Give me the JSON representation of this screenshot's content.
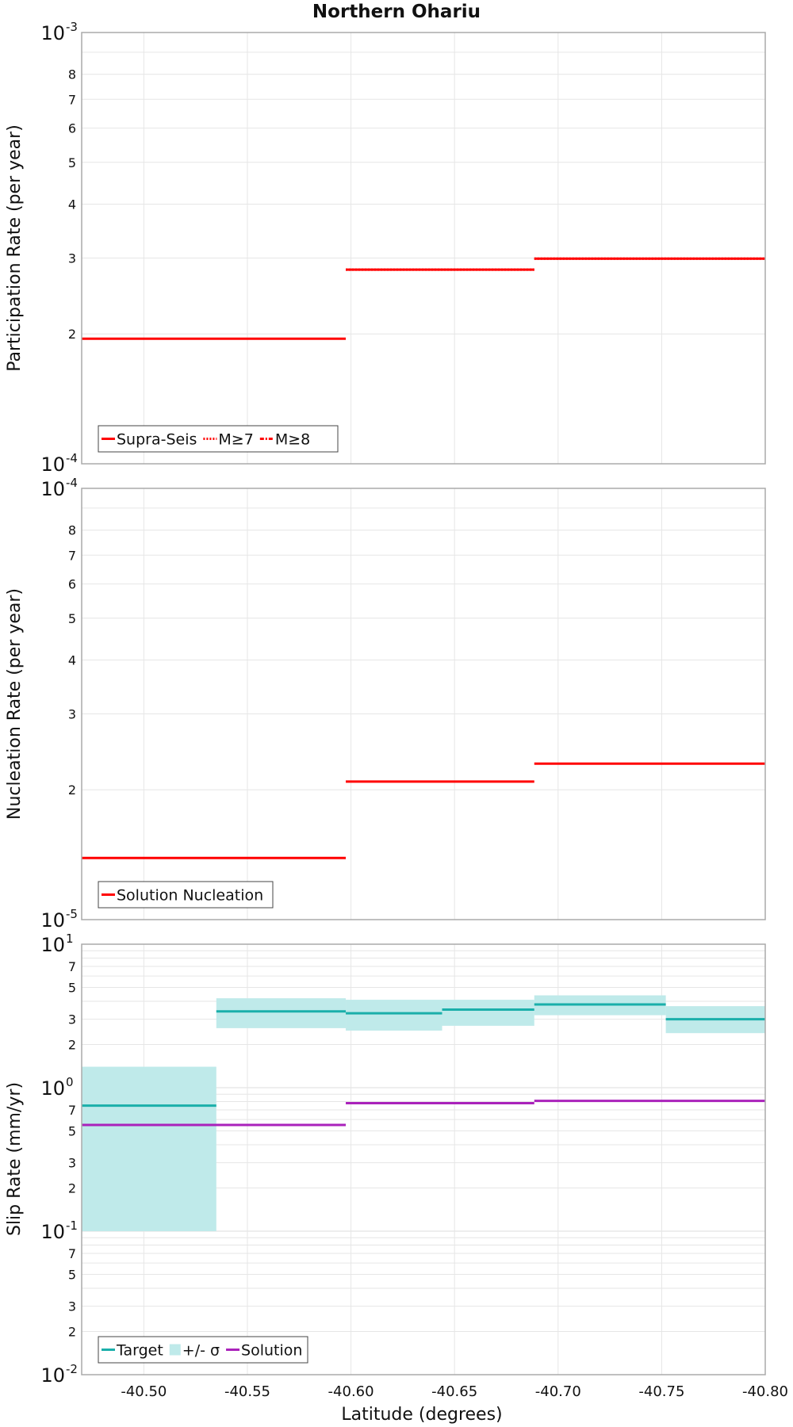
{
  "figure": {
    "title": "Northern Ohariu",
    "xlabel": "Latitude (degrees)"
  },
  "colors": {
    "red": "#ff0000",
    "teal": "#1aafaa",
    "band": "#bfeaea",
    "magenta": "#aa22bb",
    "grid": "#e6e6e6",
    "frame": "#aaaaaa"
  },
  "chart_data": [
    {
      "type": "line",
      "title": "Northern Ohariu",
      "xlabel": "",
      "ylabel": "Participation Rate (per year)",
      "yscale": "log",
      "xlim": [
        -40.47,
        -40.8
      ],
      "ylim": [
        0.0001,
        0.001
      ],
      "x_ticks": [
        "-40.50",
        "-40.55",
        "-40.60",
        "-40.65",
        "-40.70",
        "-40.75",
        "-40.80"
      ],
      "y_major_ticks": [
        {
          "base": "10",
          "exp": "-4"
        },
        {
          "base": "10",
          "exp": "-3"
        }
      ],
      "y_minor_ticks": [
        "2",
        "3",
        "4",
        "5",
        "6",
        "7",
        "8"
      ],
      "series": [
        {
          "name": "Supra-Seis",
          "style": "solid",
          "segments": [
            {
              "x": [
                -40.47,
                -40.5975
              ],
              "y": 0.000195
            },
            {
              "x": [
                -40.5975,
                -40.6885
              ],
              "y": 0.000282
            },
            {
              "x": [
                -40.6885,
                -40.8
              ],
              "y": 0.000299
            }
          ]
        },
        {
          "name": "M≥7",
          "style": "dotted",
          "segments": [
            {
              "x": [
                -40.5975,
                -40.6885
              ],
              "y": 0.000282
            },
            {
              "x": [
                -40.6885,
                -40.8
              ],
              "y": 0.000299
            }
          ]
        },
        {
          "name": "M≥8",
          "style": "dashdot",
          "segments": []
        }
      ],
      "legend": [
        "Supra-Seis",
        "M≥7",
        "M≥8"
      ],
      "legend_position": "bottom-left"
    },
    {
      "type": "line",
      "xlabel": "",
      "ylabel": "Nucleation Rate (per year)",
      "yscale": "log",
      "xlim": [
        -40.47,
        -40.8
      ],
      "ylim": [
        1e-05,
        0.0001
      ],
      "x_ticks": [
        "-40.50",
        "-40.55",
        "-40.60",
        "-40.65",
        "-40.70",
        "-40.75",
        "-40.80"
      ],
      "y_major_ticks": [
        {
          "base": "10",
          "exp": "-5"
        },
        {
          "base": "10",
          "exp": "-4"
        }
      ],
      "y_minor_ticks": [
        "2",
        "3",
        "4",
        "5",
        "6",
        "7",
        "8"
      ],
      "series": [
        {
          "name": "Solution Nucleation",
          "style": "solid",
          "segments": [
            {
              "x": [
                -40.47,
                -40.5975
              ],
              "y": 1.39e-05
            },
            {
              "x": [
                -40.5975,
                -40.6885
              ],
              "y": 2.09e-05
            },
            {
              "x": [
                -40.6885,
                -40.8
              ],
              "y": 2.3e-05
            }
          ]
        }
      ],
      "legend": [
        "Solution Nucleation"
      ],
      "legend_position": "bottom-left"
    },
    {
      "type": "line",
      "xlabel": "Latitude (degrees)",
      "ylabel": "Slip Rate (mm/yr)",
      "yscale": "log",
      "xlim": [
        -40.47,
        -40.8
      ],
      "ylim": [
        0.01,
        10
      ],
      "x_ticks": [
        "-40.50",
        "-40.55",
        "-40.60",
        "-40.65",
        "-40.70",
        "-40.75",
        "-40.80"
      ],
      "y_major_ticks": [
        {
          "base": "10",
          "exp": "-2"
        },
        {
          "base": "10",
          "exp": "-1"
        },
        {
          "base": "10",
          "exp": "0"
        },
        {
          "base": "10",
          "exp": "1"
        }
      ],
      "y_minor_ticks": [
        "2",
        "3",
        "5",
        "7"
      ],
      "series": [
        {
          "name": "Target",
          "style": "solid",
          "segments": [
            {
              "x": [
                -40.47,
                -40.535
              ],
              "y": 0.75
            },
            {
              "x": [
                -40.535,
                -40.5975
              ],
              "y": 3.4
            },
            {
              "x": [
                -40.5975,
                -40.644
              ],
              "y": 3.3
            },
            {
              "x": [
                -40.644,
                -40.6885
              ],
              "y": 3.5
            },
            {
              "x": [
                -40.6885,
                -40.752
              ],
              "y": 3.8
            },
            {
              "x": [
                -40.752,
                -40.8
              ],
              "y": 3.0
            }
          ]
        },
        {
          "name": "+/- σ",
          "style": "band",
          "segments": [
            {
              "x": [
                -40.47,
                -40.535
              ],
              "low": 0.1,
              "high": 1.4
            },
            {
              "x": [
                -40.535,
                -40.5975
              ],
              "low": 2.6,
              "high": 4.2
            },
            {
              "x": [
                -40.5975,
                -40.644
              ],
              "low": 2.5,
              "high": 4.1
            },
            {
              "x": [
                -40.644,
                -40.6885
              ],
              "low": 2.7,
              "high": 4.1
            },
            {
              "x": [
                -40.6885,
                -40.752
              ],
              "low": 3.2,
              "high": 4.4
            },
            {
              "x": [
                -40.752,
                -40.8
              ],
              "low": 2.4,
              "high": 3.7
            }
          ]
        },
        {
          "name": "Solution",
          "style": "solid",
          "segments": [
            {
              "x": [
                -40.47,
                -40.5975
              ],
              "y": 0.55
            },
            {
              "x": [
                -40.5975,
                -40.6885
              ],
              "y": 0.78
            },
            {
              "x": [
                -40.6885,
                -40.8
              ],
              "y": 0.81
            }
          ]
        }
      ],
      "legend": [
        "Target",
        "+/- σ",
        "Solution"
      ],
      "legend_position": "bottom-left"
    }
  ]
}
